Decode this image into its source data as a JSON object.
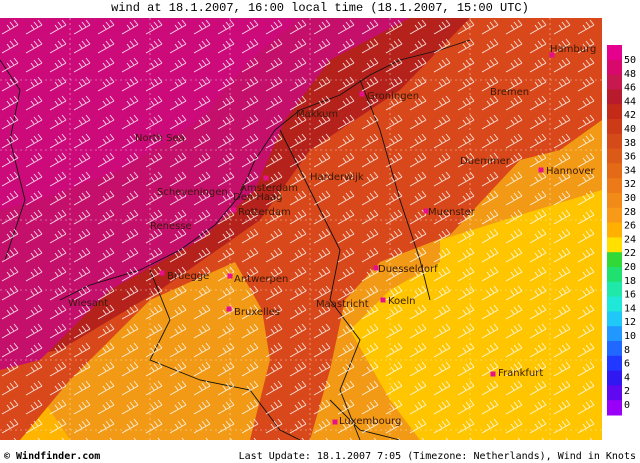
{
  "title": "wind at 18.1.2007, 16:00 local time (18.1.2007, 15:00 UTC)",
  "places": [
    {
      "label": "Hamburg"
    },
    {
      "label": "Groningen"
    },
    {
      "label": "Bremen"
    },
    {
      "label": "Makkum"
    },
    {
      "label": "North Sea"
    },
    {
      "label": "Harderwijk"
    },
    {
      "label": "Amsterdam"
    },
    {
      "label": "Scheveningen"
    },
    {
      "label": "Den Haag"
    },
    {
      "label": "Rotterdam"
    },
    {
      "label": "Duemmer"
    },
    {
      "label": "Hannover"
    },
    {
      "label": "Muenster"
    },
    {
      "label": "Renesse"
    },
    {
      "label": "Duesseldorf"
    },
    {
      "label": "Bruegge"
    },
    {
      "label": "Antwerpen"
    },
    {
      "label": "Koeln"
    },
    {
      "label": "Wiesant"
    },
    {
      "label": "Maastricht"
    },
    {
      "label": "Bruxelles"
    },
    {
      "label": "Frankfurt"
    },
    {
      "label": "Luxembourg"
    }
  ],
  "legend": {
    "ticks": [
      50,
      48,
      46,
      44,
      42,
      40,
      38,
      36,
      34,
      32,
      30,
      28,
      26,
      24,
      22,
      20,
      18,
      16,
      14,
      12,
      10,
      8,
      6,
      4,
      2,
      0
    ]
  },
  "footer": {
    "credit": "© Windfinder.com",
    "update": "Last Update: 18.1.2007 7:05 (Timezone: Netherlands), Wind in Knots"
  }
}
